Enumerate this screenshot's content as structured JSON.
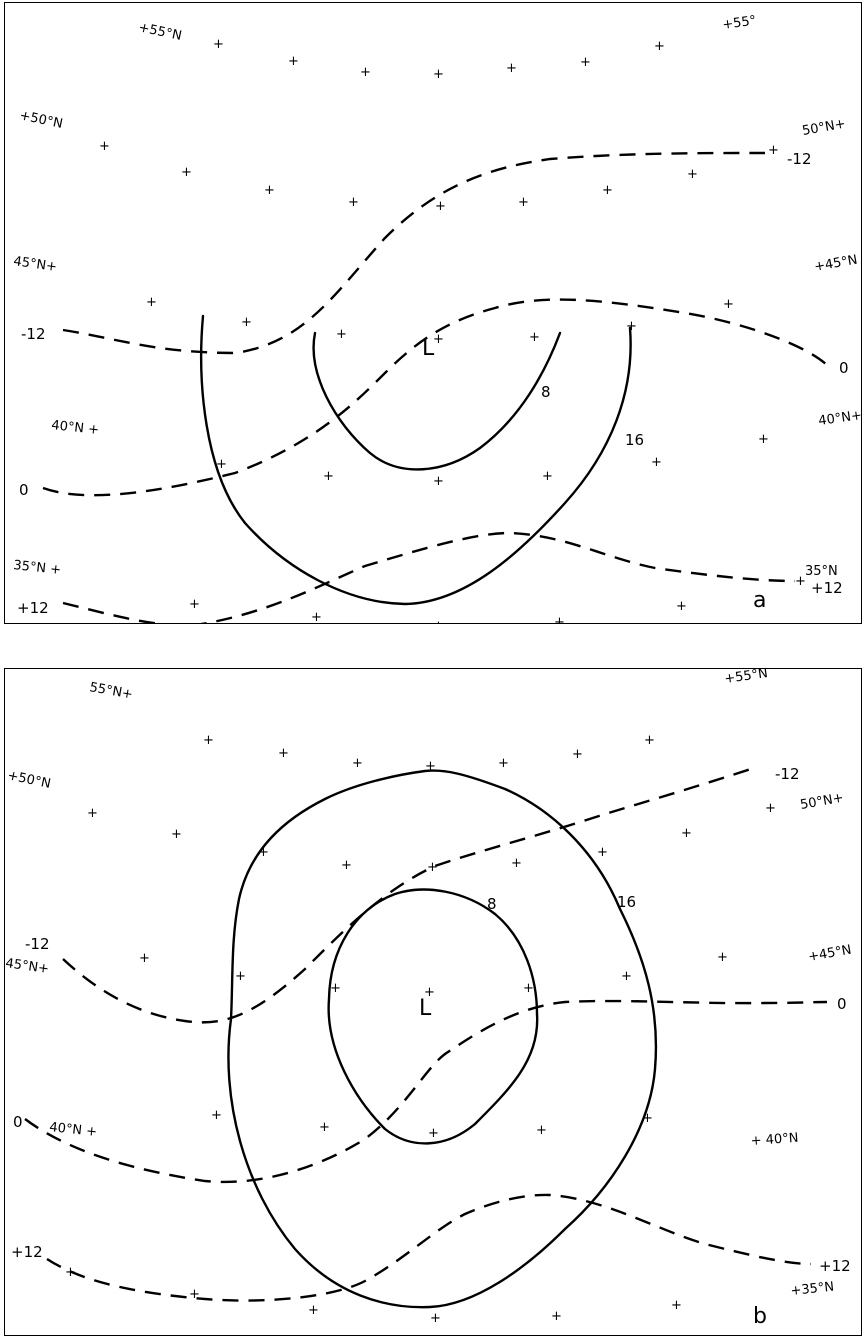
{
  "panel_a": {
    "letter": "a",
    "center": "L",
    "lat_labels": [
      "+55°N",
      "+55°",
      "+50°N",
      "50°N+",
      "45°N+",
      "+45°N",
      "40°N +",
      "40°N+",
      "35°N +",
      "35°N"
    ],
    "solid_labels": [
      "8",
      "16"
    ],
    "dashed_labels": [
      "-12",
      "-12",
      "0",
      "0",
      "+12",
      "+12"
    ]
  },
  "panel_b": {
    "letter": "b",
    "center": "L",
    "lat_labels": [
      "55°N+",
      "+55°N",
      "+50°N",
      "50°N+",
      "45°N+",
      "+45°N",
      "40°N +",
      "+ 40°N",
      "+35°N"
    ],
    "solid_labels": [
      "8",
      "16"
    ],
    "dashed_labels": [
      "-12",
      "-12",
      "0",
      "0",
      "+12",
      "+12"
    ]
  },
  "grid_mark": "+"
}
